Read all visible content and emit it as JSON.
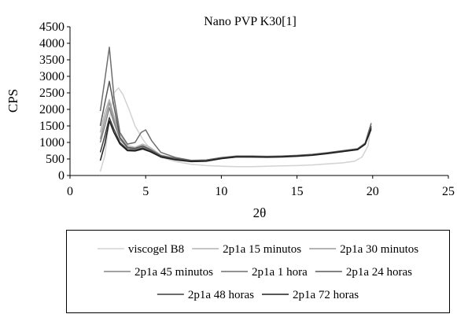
{
  "chart_data": {
    "type": "line",
    "title": "Nano PVP K30[1]",
    "xlabel": "2θ",
    "ylabel": "CPS",
    "xlim": [
      0,
      25
    ],
    "ylim": [
      0,
      4500
    ],
    "xticks": [
      0,
      5,
      10,
      15,
      20,
      25
    ],
    "yticks": [
      0,
      500,
      1000,
      1500,
      2000,
      2500,
      3000,
      3500,
      4000,
      4500
    ],
    "grid": false,
    "legend_position": "bottom",
    "series": [
      {
        "name": "viscogel B8",
        "color": "#d2d2d2",
        "x": [
          2.0,
          2.3,
          2.6,
          2.9,
          3.2,
          3.5,
          3.9,
          4.3,
          4.8,
          5.3,
          6.0,
          7.0,
          8.0,
          9.0,
          10.0,
          11.0,
          12.0,
          13.0,
          14.0,
          15.0,
          16.0,
          17.0,
          18.0,
          18.8,
          19.3,
          19.7,
          19.9
        ],
        "y": [
          120,
          600,
          1700,
          2500,
          2650,
          2450,
          2000,
          1500,
          1100,
          800,
          550,
          420,
          340,
          300,
          280,
          270,
          270,
          280,
          290,
          300,
          320,
          350,
          380,
          430,
          560,
          900,
          1600
        ]
      },
      {
        "name": "2p1a 15 minutos",
        "color": "#b4b4b4",
        "x": [
          2.0,
          2.3,
          2.6,
          2.9,
          3.3,
          3.8,
          4.3,
          4.8,
          5.3,
          6.0,
          7.0,
          8.0,
          9.0,
          10.0,
          11.0,
          12.0,
          13.0,
          14.0,
          15.0,
          16.0,
          17.0,
          18.0,
          19.0,
          19.5,
          19.9
        ],
        "y": [
          1300,
          1900,
          2300,
          1800,
          1250,
          900,
          850,
          950,
          850,
          620,
          520,
          450,
          460,
          540,
          580,
          570,
          570,
          580,
          600,
          630,
          680,
          740,
          800,
          950,
          1500
        ]
      },
      {
        "name": "2p1a 30 minutos",
        "color": "#9a9a9a",
        "x": [
          2.0,
          2.3,
          2.6,
          2.9,
          3.3,
          3.8,
          4.3,
          4.8,
          5.3,
          6.0,
          7.0,
          8.0,
          9.0,
          10.0,
          11.0,
          12.0,
          13.0,
          14.0,
          15.0,
          16.0,
          17.0,
          18.0,
          19.0,
          19.5,
          19.9
        ],
        "y": [
          1100,
          1700,
          2200,
          1700,
          1150,
          850,
          800,
          900,
          800,
          600,
          500,
          440,
          450,
          530,
          570,
          560,
          560,
          570,
          590,
          620,
          670,
          730,
          790,
          950,
          1450
        ]
      },
      {
        "name": "2p1a 45 minutos",
        "color": "#848484",
        "x": [
          2.0,
          2.3,
          2.6,
          2.9,
          3.3,
          3.8,
          4.3,
          4.8,
          5.3,
          6.0,
          7.0,
          8.0,
          9.0,
          10.0,
          11.0,
          12.0,
          13.0,
          14.0,
          15.0,
          16.0,
          17.0,
          18.0,
          19.0,
          19.5,
          19.9
        ],
        "y": [
          1000,
          1500,
          2050,
          1600,
          1100,
          830,
          780,
          870,
          780,
          590,
          500,
          440,
          450,
          520,
          560,
          560,
          560,
          570,
          590,
          620,
          670,
          730,
          790,
          950,
          1450
        ]
      },
      {
        "name": "2p1a 1 hora",
        "color": "#6e6e6e",
        "x": [
          2.0,
          2.3,
          2.6,
          2.9,
          3.3,
          3.8,
          4.3,
          4.7,
          5.0,
          5.4,
          6.0,
          7.0,
          8.0,
          9.0,
          10.0,
          11.0,
          12.0,
          13.0,
          14.0,
          15.0,
          16.0,
          17.0,
          18.0,
          19.0,
          19.5,
          19.9
        ],
        "y": [
          1950,
          2900,
          3880,
          2400,
          1300,
          950,
          1000,
          1300,
          1380,
          1050,
          700,
          540,
          460,
          470,
          540,
          590,
          590,
          580,
          590,
          610,
          640,
          690,
          750,
          810,
          980,
          1580
        ]
      },
      {
        "name": "2p1a 24 horas",
        "color": "#585858",
        "x": [
          2.0,
          2.3,
          2.6,
          2.9,
          3.3,
          3.8,
          4.3,
          4.8,
          5.3,
          6.0,
          7.0,
          8.0,
          9.0,
          10.0,
          11.0,
          12.0,
          13.0,
          14.0,
          15.0,
          16.0,
          17.0,
          18.0,
          19.0,
          19.5,
          19.9
        ],
        "y": [
          1500,
          2200,
          2850,
          2100,
          1150,
          850,
          820,
          900,
          780,
          600,
          510,
          450,
          460,
          530,
          580,
          580,
          570,
          580,
          600,
          630,
          680,
          740,
          800,
          960,
          1500
        ]
      },
      {
        "name": "2p1a 48 horas",
        "color": "#3c3c3c",
        "x": [
          2.0,
          2.3,
          2.6,
          2.9,
          3.3,
          3.8,
          4.3,
          4.8,
          5.3,
          6.0,
          7.0,
          8.0,
          9.0,
          10.0,
          11.0,
          12.0,
          13.0,
          14.0,
          15.0,
          16.0,
          17.0,
          18.0,
          19.0,
          19.5,
          19.9
        ],
        "y": [
          700,
          1200,
          1750,
          1400,
          1000,
          780,
          760,
          830,
          740,
          570,
          480,
          430,
          440,
          520,
          570,
          570,
          560,
          570,
          590,
          620,
          670,
          730,
          790,
          950,
          1450
        ]
      },
      {
        "name": "2p1a 72 horas",
        "color": "#1e1e1e",
        "x": [
          2.0,
          2.3,
          2.6,
          2.9,
          3.3,
          3.8,
          4.3,
          4.8,
          5.3,
          6.0,
          7.0,
          8.0,
          9.0,
          10.0,
          11.0,
          12.0,
          13.0,
          14.0,
          15.0,
          16.0,
          17.0,
          18.0,
          19.0,
          19.5,
          19.9
        ],
        "y": [
          450,
          950,
          1650,
          1300,
          950,
          750,
          740,
          800,
          720,
          560,
          470,
          420,
          430,
          510,
          560,
          560,
          550,
          560,
          580,
          610,
          660,
          720,
          780,
          940,
          1400
        ]
      }
    ]
  }
}
